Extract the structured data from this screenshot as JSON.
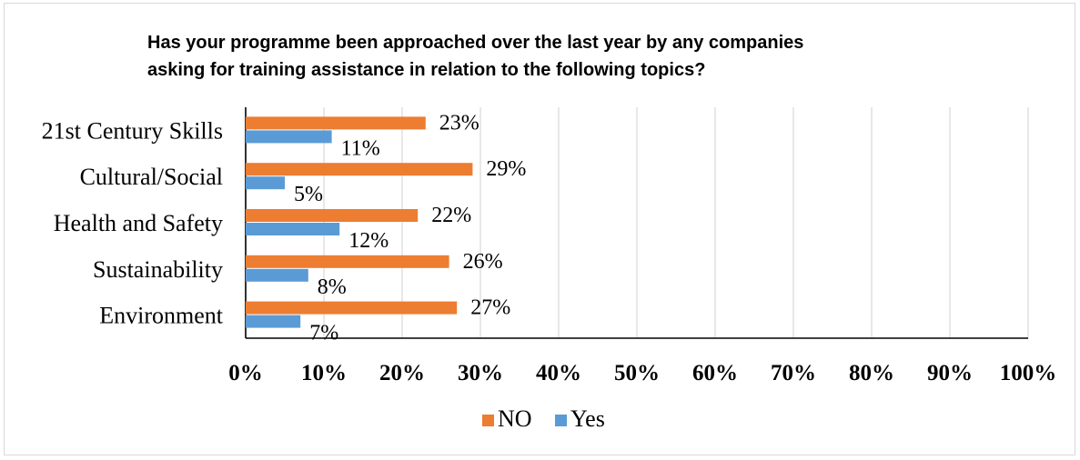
{
  "chart_data": {
    "type": "bar",
    "orientation": "horizontal",
    "title": "Has your programme been approached over the last year by any companies\nasking for training assistance in relation to the following topics?",
    "categories": [
      "21st Century Skills",
      "Cultural/Social",
      "Health and Safety",
      "Sustainability",
      "Environment"
    ],
    "series": [
      {
        "name": "NO",
        "color": "#ed7d31",
        "values": [
          23,
          29,
          22,
          26,
          27
        ],
        "labels": [
          "23%",
          "29%",
          "22%",
          "26%",
          "27%"
        ]
      },
      {
        "name": "Yes",
        "color": "#5b9bd5",
        "values": [
          11,
          5,
          12,
          8,
          7
        ],
        "labels": [
          "11%",
          "5%",
          "12%",
          "8%",
          "7%"
        ]
      }
    ],
    "xlim": [
      0,
      100
    ],
    "xticks": [
      0,
      10,
      20,
      30,
      40,
      50,
      60,
      70,
      80,
      90,
      100
    ],
    "xtick_labels": [
      "0%",
      "10%",
      "20%",
      "30%",
      "40%",
      "50%",
      "60%",
      "70%",
      "80%",
      "90%",
      "100%"
    ],
    "grid": true,
    "legend": "bottom"
  }
}
